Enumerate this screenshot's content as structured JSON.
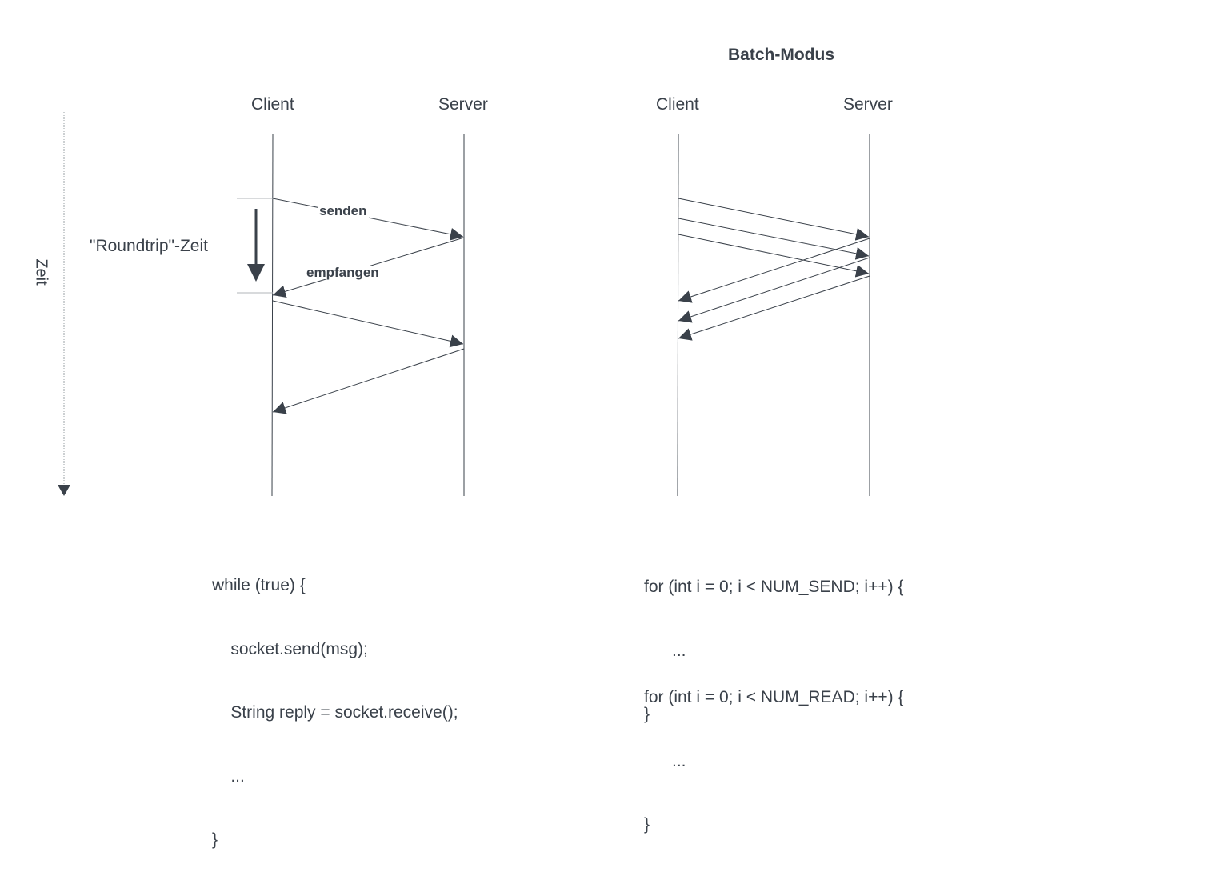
{
  "time_axis": {
    "label": "Zeit"
  },
  "left_diagram": {
    "client_label": "Client",
    "server_label": "Server",
    "roundtrip_label": "\"Roundtrip\"-Zeit",
    "send_label": "senden",
    "receive_label": "empfangen",
    "code_lines": [
      "while (true) {",
      "    socket.send(msg);",
      "    String reply = socket.receive();",
      "    ...",
      "}"
    ]
  },
  "right_diagram": {
    "title": "Batch-Modus",
    "client_label": "Client",
    "server_label": "Server",
    "code_send_lines": [
      "for (int i = 0; i < NUM_SEND; i++) {",
      "      ...",
      "}"
    ],
    "code_read_lines": [
      "for (int i = 0; i < NUM_READ; i++) {",
      "      ...",
      "}"
    ]
  },
  "colors": {
    "line": "#3a414a",
    "axis": "#9aa0a6"
  }
}
